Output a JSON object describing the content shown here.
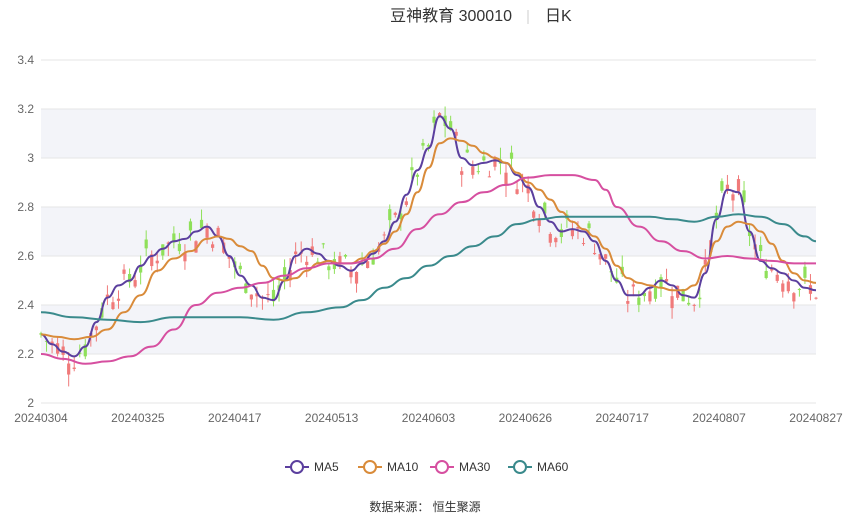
{
  "chart_data": {
    "type": "candlestick-line",
    "title": "豆神教育 300010",
    "subtitle": "日K",
    "y_ticks": [
      "2",
      "2.2",
      "2.4",
      "2.6",
      "2.8",
      "3",
      "3.2",
      "3.4"
    ],
    "ylim": [
      2,
      3.4
    ],
    "x_ticks": [
      "20240304",
      "20240325",
      "20240417",
      "20240513",
      "20240603",
      "20240626",
      "20240717",
      "20240807",
      "20240827"
    ],
    "legend": [
      {
        "name": "MA5",
        "color": "#5b3f9e"
      },
      {
        "name": "MA10",
        "color": "#d98b3a"
      },
      {
        "name": "MA30",
        "color": "#d64fa0"
      },
      {
        "name": "MA60",
        "color": "#3a8a8c"
      }
    ],
    "up_color": "#f07a7a",
    "down_color": "#8fe05a",
    "source": "数据来源： 恒生聚源",
    "series": [
      {
        "name": "MA5",
        "points": [
          [
            0,
            2.28
          ],
          [
            2,
            2.24
          ],
          [
            4,
            2.21
          ],
          [
            6,
            2.19
          ],
          [
            8,
            2.23
          ],
          [
            10,
            2.33
          ],
          [
            12,
            2.43
          ],
          [
            14,
            2.48
          ],
          [
            16,
            2.5
          ],
          [
            18,
            2.56
          ],
          [
            20,
            2.6
          ],
          [
            22,
            2.63
          ],
          [
            24,
            2.66
          ],
          [
            26,
            2.67
          ],
          [
            28,
            2.7
          ],
          [
            30,
            2.72
          ],
          [
            32,
            2.68
          ],
          [
            34,
            2.6
          ],
          [
            36,
            2.52
          ],
          [
            38,
            2.48
          ],
          [
            40,
            2.43
          ],
          [
            42,
            2.42
          ],
          [
            44,
            2.5
          ],
          [
            46,
            2.6
          ],
          [
            48,
            2.63
          ],
          [
            50,
            2.61
          ],
          [
            52,
            2.58
          ],
          [
            54,
            2.56
          ],
          [
            56,
            2.54
          ],
          [
            58,
            2.57
          ],
          [
            60,
            2.61
          ],
          [
            62,
            2.66
          ],
          [
            64,
            2.74
          ],
          [
            66,
            2.85
          ],
          [
            68,
            2.95
          ],
          [
            70,
            3.04
          ],
          [
            72,
            3.17
          ],
          [
            74,
            3.12
          ],
          [
            76,
            3.0
          ],
          [
            78,
            2.97
          ],
          [
            80,
            2.98
          ],
          [
            82,
            2.99
          ],
          [
            84,
            2.98
          ],
          [
            86,
            2.93
          ],
          [
            88,
            2.88
          ],
          [
            90,
            2.8
          ],
          [
            92,
            2.74
          ],
          [
            94,
            2.7
          ],
          [
            96,
            2.71
          ],
          [
            98,
            2.7
          ],
          [
            100,
            2.66
          ],
          [
            102,
            2.58
          ],
          [
            104,
            2.5
          ],
          [
            106,
            2.44
          ],
          [
            108,
            2.44
          ],
          [
            110,
            2.47
          ],
          [
            112,
            2.5
          ],
          [
            114,
            2.48
          ],
          [
            116,
            2.44
          ],
          [
            118,
            2.43
          ],
          [
            120,
            2.53
          ],
          [
            122,
            2.75
          ],
          [
            124,
            2.87
          ],
          [
            126,
            2.86
          ],
          [
            128,
            2.7
          ],
          [
            130,
            2.58
          ],
          [
            132,
            2.55
          ],
          [
            134,
            2.53
          ],
          [
            136,
            2.5
          ],
          [
            138,
            2.47
          ],
          [
            140,
            2.46
          ]
        ]
      },
      {
        "name": "MA10",
        "points": [
          [
            0,
            2.28
          ],
          [
            3,
            2.27
          ],
          [
            6,
            2.26
          ],
          [
            9,
            2.27
          ],
          [
            12,
            2.3
          ],
          [
            15,
            2.37
          ],
          [
            18,
            2.44
          ],
          [
            21,
            2.54
          ],
          [
            24,
            2.59
          ],
          [
            27,
            2.62
          ],
          [
            30,
            2.67
          ],
          [
            32,
            2.68
          ],
          [
            34,
            2.67
          ],
          [
            36,
            2.64
          ],
          [
            38,
            2.62
          ],
          [
            40,
            2.56
          ],
          [
            42,
            2.51
          ],
          [
            44,
            2.5
          ],
          [
            46,
            2.51
          ],
          [
            48,
            2.54
          ],
          [
            50,
            2.57
          ],
          [
            52,
            2.58
          ],
          [
            54,
            2.57
          ],
          [
            56,
            2.57
          ],
          [
            58,
            2.59
          ],
          [
            60,
            2.62
          ],
          [
            62,
            2.65
          ],
          [
            64,
            2.7
          ],
          [
            66,
            2.77
          ],
          [
            68,
            2.86
          ],
          [
            70,
            2.96
          ],
          [
            72,
            3.06
          ],
          [
            74,
            3.08
          ],
          [
            76,
            3.07
          ],
          [
            78,
            3.05
          ],
          [
            80,
            3.02
          ],
          [
            82,
            3.0
          ],
          [
            84,
            2.98
          ],
          [
            86,
            2.94
          ],
          [
            88,
            2.9
          ],
          [
            90,
            2.87
          ],
          [
            92,
            2.83
          ],
          [
            94,
            2.78
          ],
          [
            96,
            2.74
          ],
          [
            98,
            2.71
          ],
          [
            100,
            2.68
          ],
          [
            102,
            2.63
          ],
          [
            104,
            2.56
          ],
          [
            106,
            2.51
          ],
          [
            108,
            2.49
          ],
          [
            110,
            2.48
          ],
          [
            112,
            2.47
          ],
          [
            114,
            2.46
          ],
          [
            116,
            2.46
          ],
          [
            118,
            2.48
          ],
          [
            120,
            2.56
          ],
          [
            122,
            2.66
          ],
          [
            124,
            2.72
          ],
          [
            126,
            2.74
          ],
          [
            128,
            2.73
          ],
          [
            130,
            2.7
          ],
          [
            132,
            2.65
          ],
          [
            134,
            2.58
          ],
          [
            136,
            2.53
          ],
          [
            138,
            2.5
          ],
          [
            140,
            2.49
          ]
        ]
      },
      {
        "name": "MA30",
        "points": [
          [
            0,
            2.2
          ],
          [
            4,
            2.18
          ],
          [
            8,
            2.16
          ],
          [
            12,
            2.17
          ],
          [
            16,
            2.19
          ],
          [
            20,
            2.23
          ],
          [
            24,
            2.3
          ],
          [
            28,
            2.4
          ],
          [
            32,
            2.45
          ],
          [
            36,
            2.47
          ],
          [
            40,
            2.49
          ],
          [
            44,
            2.52
          ],
          [
            48,
            2.55
          ],
          [
            52,
            2.57
          ],
          [
            56,
            2.57
          ],
          [
            60,
            2.59
          ],
          [
            64,
            2.63
          ],
          [
            68,
            2.71
          ],
          [
            72,
            2.77
          ],
          [
            76,
            2.82
          ],
          [
            80,
            2.86
          ],
          [
            84,
            2.89
          ],
          [
            88,
            2.92
          ],
          [
            92,
            2.93
          ],
          [
            96,
            2.93
          ],
          [
            100,
            2.91
          ],
          [
            102,
            2.87
          ],
          [
            104,
            2.8
          ],
          [
            108,
            2.72
          ],
          [
            112,
            2.66
          ],
          [
            116,
            2.62
          ],
          [
            120,
            2.59
          ],
          [
            124,
            2.6
          ],
          [
            128,
            2.59
          ],
          [
            132,
            2.58
          ],
          [
            136,
            2.57
          ],
          [
            140,
            2.57
          ]
        ]
      },
      {
        "name": "MA60",
        "points": [
          [
            0,
            2.37
          ],
          [
            6,
            2.35
          ],
          [
            12,
            2.34
          ],
          [
            18,
            2.33
          ],
          [
            24,
            2.35
          ],
          [
            30,
            2.35
          ],
          [
            36,
            2.35
          ],
          [
            42,
            2.34
          ],
          [
            48,
            2.37
          ],
          [
            54,
            2.39
          ],
          [
            58,
            2.42
          ],
          [
            62,
            2.47
          ],
          [
            66,
            2.51
          ],
          [
            70,
            2.56
          ],
          [
            74,
            2.6
          ],
          [
            78,
            2.64
          ],
          [
            82,
            2.68
          ],
          [
            86,
            2.73
          ],
          [
            90,
            2.75
          ],
          [
            94,
            2.76
          ],
          [
            98,
            2.76
          ],
          [
            102,
            2.76
          ],
          [
            106,
            2.76
          ],
          [
            110,
            2.76
          ],
          [
            114,
            2.75
          ],
          [
            118,
            2.74
          ],
          [
            122,
            2.76
          ],
          [
            126,
            2.77
          ],
          [
            130,
            2.76
          ],
          [
            134,
            2.73
          ],
          [
            138,
            2.68
          ],
          [
            140,
            2.66
          ]
        ]
      }
    ]
  }
}
